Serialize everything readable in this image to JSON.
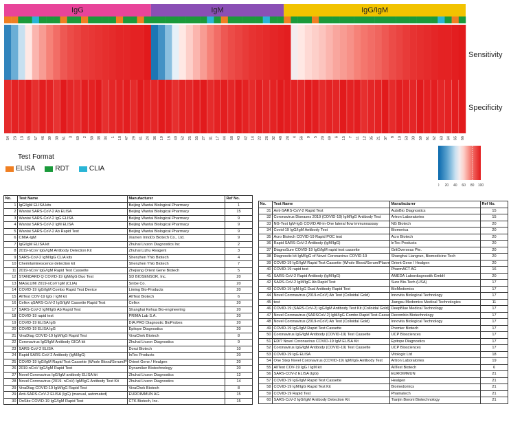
{
  "chart_data": {
    "type": "heatmap",
    "groups": [
      {
        "name": "IgG",
        "color": "#e8449a",
        "span": [
          0,
          21
        ]
      },
      {
        "name": "IgM",
        "color": "#8a4fb5",
        "span": [
          21,
          40
        ]
      },
      {
        "name": "IgG/IgM",
        "color": "#f2c300",
        "span": [
          40,
          66
        ]
      }
    ],
    "rows": [
      "Sensitivity",
      "Specificity"
    ],
    "columns": [
      "54",
      "23",
      "13",
      "45",
      "57",
      "46",
      "39",
      "30",
      "51",
      "3",
      "60",
      "2",
      "50",
      "38",
      "34",
      "1",
      "18",
      "47",
      "29",
      "41",
      "24",
      "36",
      "19",
      "16",
      "40",
      "52",
      "25",
      "55",
      "27",
      "31",
      "17",
      "44",
      "58",
      "43",
      "42",
      "14",
      "22",
      "26",
      "32",
      "48",
      "28",
      "4",
      "56",
      "9",
      "5",
      "20",
      "49",
      "6",
      "15",
      "7",
      "11",
      "12",
      "35",
      "21",
      "37",
      "8",
      "10",
      "53",
      "33",
      "59",
      "61",
      "62",
      "63",
      "64",
      "65",
      "66"
    ],
    "formats": [
      "ELISA",
      "ELISA",
      "RDT",
      "RDT",
      "CLIA",
      "RDT",
      "RDT",
      "RDT",
      "ELISA",
      "RDT",
      "RDT",
      "ELISA",
      "RDT",
      "RDT",
      "RDT",
      "RDT",
      "ELISA",
      "RDT",
      "RDT",
      "ELISA",
      "RDT",
      "RDT",
      "RDT",
      "RDT",
      "RDT",
      "RDT",
      "RDT",
      "RDT",
      "RDT",
      "CLIA",
      "RDT",
      "ELISA",
      "RDT",
      "RDT",
      "RDT",
      "RDT",
      "RDT",
      "CLIA",
      "RDT",
      "RDT",
      "ELISA",
      "RDT",
      "RDT",
      "RDT",
      "ELISA",
      "RDT",
      "RDT",
      "RDT",
      "RDT",
      "RDT",
      "RDT",
      "RDT",
      "RDT",
      "RDT",
      "RDT",
      "RDT",
      "RDT",
      "RDT",
      "RDT",
      "RDT",
      "RDT",
      "RDT",
      "CLIA",
      "RDT",
      "ELISA",
      "RDT"
    ],
    "sensitivity": [
      10,
      25,
      40,
      55,
      65,
      70,
      75,
      80,
      85,
      88,
      90,
      92,
      93,
      94,
      95,
      96,
      97,
      97,
      98,
      98,
      100,
      5,
      15,
      30,
      45,
      55,
      60,
      65,
      70,
      75,
      80,
      85,
      88,
      90,
      92,
      94,
      95,
      96,
      97,
      98,
      99,
      50,
      55,
      58,
      60,
      62,
      65,
      68,
      70,
      72,
      75,
      78,
      80,
      82,
      85,
      88,
      90,
      92,
      94,
      95,
      96,
      97,
      98,
      98,
      99,
      100
    ],
    "specificity": [
      96,
      98,
      97,
      100,
      95,
      99,
      98,
      94,
      100,
      97,
      96,
      99,
      98,
      100,
      95,
      97,
      98,
      99,
      96,
      100,
      98,
      97,
      100,
      99,
      95,
      98,
      97,
      99,
      100,
      96,
      98,
      99,
      97,
      100,
      98,
      96,
      99,
      97,
      98,
      100,
      99,
      98,
      97,
      100,
      99,
      96,
      98,
      97,
      100,
      98,
      99,
      95,
      97,
      98,
      100,
      96,
      99,
      98,
      97,
      100,
      98,
      99,
      97,
      98,
      99,
      100
    ],
    "colorbar": {
      "ticks": [
        "0",
        "20",
        "40",
        "60",
        "80",
        "100"
      ],
      "range": [
        0,
        100
      ]
    }
  },
  "legend": {
    "title": "Test Format",
    "items": [
      {
        "label": "ELISA",
        "color": "#f07f22"
      },
      {
        "label": "RDT",
        "color": "#1a9a3a"
      },
      {
        "label": "CLIA",
        "color": "#29b5d6"
      }
    ]
  },
  "table_headers": [
    "No.",
    "Test Name",
    "Manufacturer",
    "Ref No."
  ],
  "table_left": [
    [
      "1",
      "IgG/IgM ELISA kits",
      "Beijing Wantai Biological Pharmacy",
      "1"
    ],
    [
      "2",
      "Wantai SARS-CoV-2 Ab ELISA",
      "Beijing Wantai Biological Pharmacy",
      "15"
    ],
    [
      "3",
      "Wantai SARS-CoV-2 IgG ELISA",
      "Beijing Wantai Biological Pharmacy",
      "9"
    ],
    [
      "4",
      "Wantai SARS-CoV-2 IgM ELISA",
      "Beijing Wantai Biological Pharmacy",
      "9"
    ],
    [
      "5",
      "Wantai SARS-CoV-2 Ab Rapid Test",
      "Beijing Wantai Biological Pharmacy",
      "9"
    ],
    [
      "6",
      "CMIA-IgM",
      "Xiamen InnoDx Biotech Co., Ltd.",
      "9"
    ],
    [
      "7",
      "IgG/IgM ELISA kit",
      "Zhuhai Livzon Diagnostics Inc",
      "2"
    ],
    [
      "8",
      "2019-nCoV IgG/IgM Antibody Detection Kit",
      "Zhuhai Lizhu Reagent",
      "3"
    ],
    [
      "9",
      "SARS-CoV-2 IgM/IgG CLIA kits",
      "Shenzhen Yhlo Biotech",
      "4"
    ],
    [
      "10",
      "Chemiluminescence detection kit",
      "Shenzhen Yhlo Biotech",
      "7"
    ],
    [
      "11",
      "2019-nCoV IgG/IgM Rapid Test Cassette",
      "Zhejiang Orient Gene Biotech",
      "5"
    ],
    [
      "12",
      "STANDARD Q COVID-19 IgM/IgG Duo Test",
      "SD BIOSENSOR, Inc.",
      "20"
    ],
    [
      "13",
      "MAGLUMI 2019-nCoV IgM (CLIA)",
      "Snibe Co.",
      "20"
    ],
    [
      "14",
      "COVID-19 IgG/IgM Combo Rapid Test Device",
      "Liming Bio-Products",
      "20"
    ],
    [
      "15",
      "AllTest COV-19 IgG / IgM kit",
      "AllTest Biotech",
      "6"
    ],
    [
      "16",
      "Cellex qSARS-CoV-2 IgG/IgM Cassette Rapid Test",
      "Cellex",
      "20"
    ],
    [
      "17",
      "SARS-CoV-2 IgM/IgG Ab Rapid Test",
      "Shanghai Kehua Bio-engineering",
      "20"
    ],
    [
      "18",
      "COVID-19 rapid test",
      "PRIMA Lab S.A.",
      "20"
    ],
    [
      "19",
      "COVID-19 ELISA IgG",
      "DIA.PRO Diagnostic BioProbes",
      "20"
    ],
    [
      "20",
      "COVID-19 ELISA IgG",
      "Epitope Diagnostics",
      "20"
    ],
    [
      "21",
      "VivaDiag COVID-19 IgM/IgG Rapid Test",
      "VivaChek Biotech",
      "8"
    ],
    [
      "22",
      "Coronavirus IgG/IgM Antibody GICA kit",
      "Zhuhai Livzon Diagnostics",
      "9"
    ],
    [
      "23",
      "SARS-CoV-2 ELISA",
      "Dorui Biotech",
      "10"
    ],
    [
      "24",
      "Rapid SARS-CoV-2 Antibody (IgM/IgG)",
      "InTec Products",
      "20"
    ],
    [
      "25",
      "COVID-19 IgG/IgM Rapid Test Cassette (Whole Blood/Serum/Plasma)",
      "Orient Gene / Healgen",
      "20"
    ],
    [
      "26",
      "2019-nCoV IgG/IgM Rapid Test",
      "Dynamiker Biotechnology",
      "20"
    ],
    [
      "27",
      "Novel Coronavirus IgG/IgM antibody ELISA kit",
      "Zhuhai Livzon Diagnostics",
      "12"
    ],
    [
      "28",
      "Novel Coronavirus (2019- nCoV) IgM/IgG Antibody Test Kit",
      "Zhuhai Livzon Diagnostics",
      "14"
    ],
    [
      "29",
      "VivaDiag COVID-19 IgM/IgG Rapid Test",
      "VivaChek Biotech",
      "8"
    ],
    [
      "29",
      "Anti-SARS-CoV-2 ELISA (IgG) (manual, automated)",
      "EUROIMMUN AG",
      "15"
    ],
    [
      "30",
      "OnSite COVID-19 IgG/IgM Rapid Test",
      "CTK Biotech, Inc.",
      "15"
    ]
  ],
  "table_right": [
    [
      "31",
      "Anti-SARS-CoV-2 Rapid Test",
      "AutoBio Diagnostics",
      "15"
    ],
    [
      "32",
      "Coronavirus Diseases 2019 (COVID-19) IgM/IgG Antibody Test",
      "Artron Laboratories",
      "15"
    ],
    [
      "33",
      "NG-Test IgM-IgG COVID All-in-One lateral flow immunoassay",
      "NG Biotech",
      "20"
    ],
    [
      "34",
      "Covid-19 IgG/IgM Antibody Test",
      "Biomerica",
      "20"
    ],
    [
      "35",
      "Acro Biotech COVID-19 Rapid POC test",
      "Acro Biotech",
      "20"
    ],
    [
      "36",
      "Rapid SARS-CoV-2 Antibody (IgM/IgG)",
      "InTec Products",
      "20"
    ],
    [
      "37",
      "DiagnoSure COVID-19 IgG/IgM rapid test cassette",
      "GritOverseas Pte.",
      "20"
    ],
    [
      "38",
      "Diagnostic kit IgM/IgG of Novel Coronavirus COVID-19",
      "Shanghai Liangrun, Biomedicine Tech",
      "20"
    ],
    [
      "39",
      "COVID-19 IgG/IgM Rapid Test Cassette (Whole Blood/Serum/Plasma)",
      "Orient Gene / Healgen",
      "20"
    ],
    [
      "40",
      "COVID-19 rapid test",
      "PharmACT AG",
      "16"
    ],
    [
      "41",
      "SARS-CoV-2 Rapid Antibody (IgM/IgG)",
      "AMEDA Labordiagnostik GmbH",
      "20"
    ],
    [
      "42",
      "SARS-CoV-2 IgM/IgG Ab Rapid Test",
      "Sure Bio-Tech (USA)",
      "17"
    ],
    [
      "43",
      "COVID-19 IgM-IgG Dual Antibody Rapid Test",
      "BioMedomics",
      "17"
    ],
    [
      "44",
      "Novel Coronavirus (2019-nCoV) Ab Test (Colloidal Gold)",
      "Innovita Biological Technology",
      "17"
    ],
    [
      "45",
      "test",
      "Jiangsu Medomics Medical Technologies",
      "11"
    ],
    [
      "46",
      "COVID-19 (SARS-CoV-2) IgG/IgM Antibody Test Kit (Colloidal Gold)",
      "DeepBlue Medical Technology",
      "17"
    ],
    [
      "47",
      "Novel Coronavirus (SARSCoV-2) IgM/IgG Combo Rapid Test-Cassette",
      "Decombio Biotechnology",
      "17"
    ],
    [
      "48",
      "Novel Coronavirus (2019-nCoV) Ab Test (Colloidal Gold)",
      "Innovita Biological Technology",
      "17"
    ],
    [
      "49",
      "COVID-19 IgG/IgM Rapid Test Cassette",
      "Premier Biotech",
      "17"
    ],
    [
      "50",
      "Coronavirus IgG/IgM Antibody (COVID-19) Test Cassette",
      "UCP Biosciences",
      "17"
    ],
    [
      "51",
      "EDI? Novel Coronavirus COVID-19 IgM ELISA Kit",
      "Epitope Diagnostics",
      "17"
    ],
    [
      "52",
      "Coronavirus IgG/IgM Antibody (COVID-19) Test Cassette",
      "UCP Biosciences",
      "17"
    ],
    [
      "53",
      "COVID-19 IgG ELISA",
      "Vitologic Ltd",
      "18"
    ],
    [
      "54",
      "One Step Novel Coronavirus (COVID-19) IgM/IgG Antibody Test",
      "Artron Laboratories",
      "19"
    ],
    [
      "55",
      "AllTest COV-19 IgG / IgM kit",
      "AllTest Biotech",
      "6"
    ],
    [
      "56",
      "SARS-COV-2 ELISA (IgG)",
      "EUROIMMUN",
      "21"
    ],
    [
      "57",
      "COVID-19 IgG/IgM Rapid Test Cassette",
      "Healgen",
      "21"
    ],
    [
      "58",
      "COVID-19 IgM/IgG Rapid Test Kit",
      "Biomedomics",
      "21"
    ],
    [
      "59",
      "COVID-19 Rapid Test",
      "Phamatech",
      "21"
    ],
    [
      "60",
      "SARS-CoV-2 IgG/IgM Antibody Detection Kit",
      "Tianjin Boroni Biotechnology",
      "21"
    ]
  ]
}
